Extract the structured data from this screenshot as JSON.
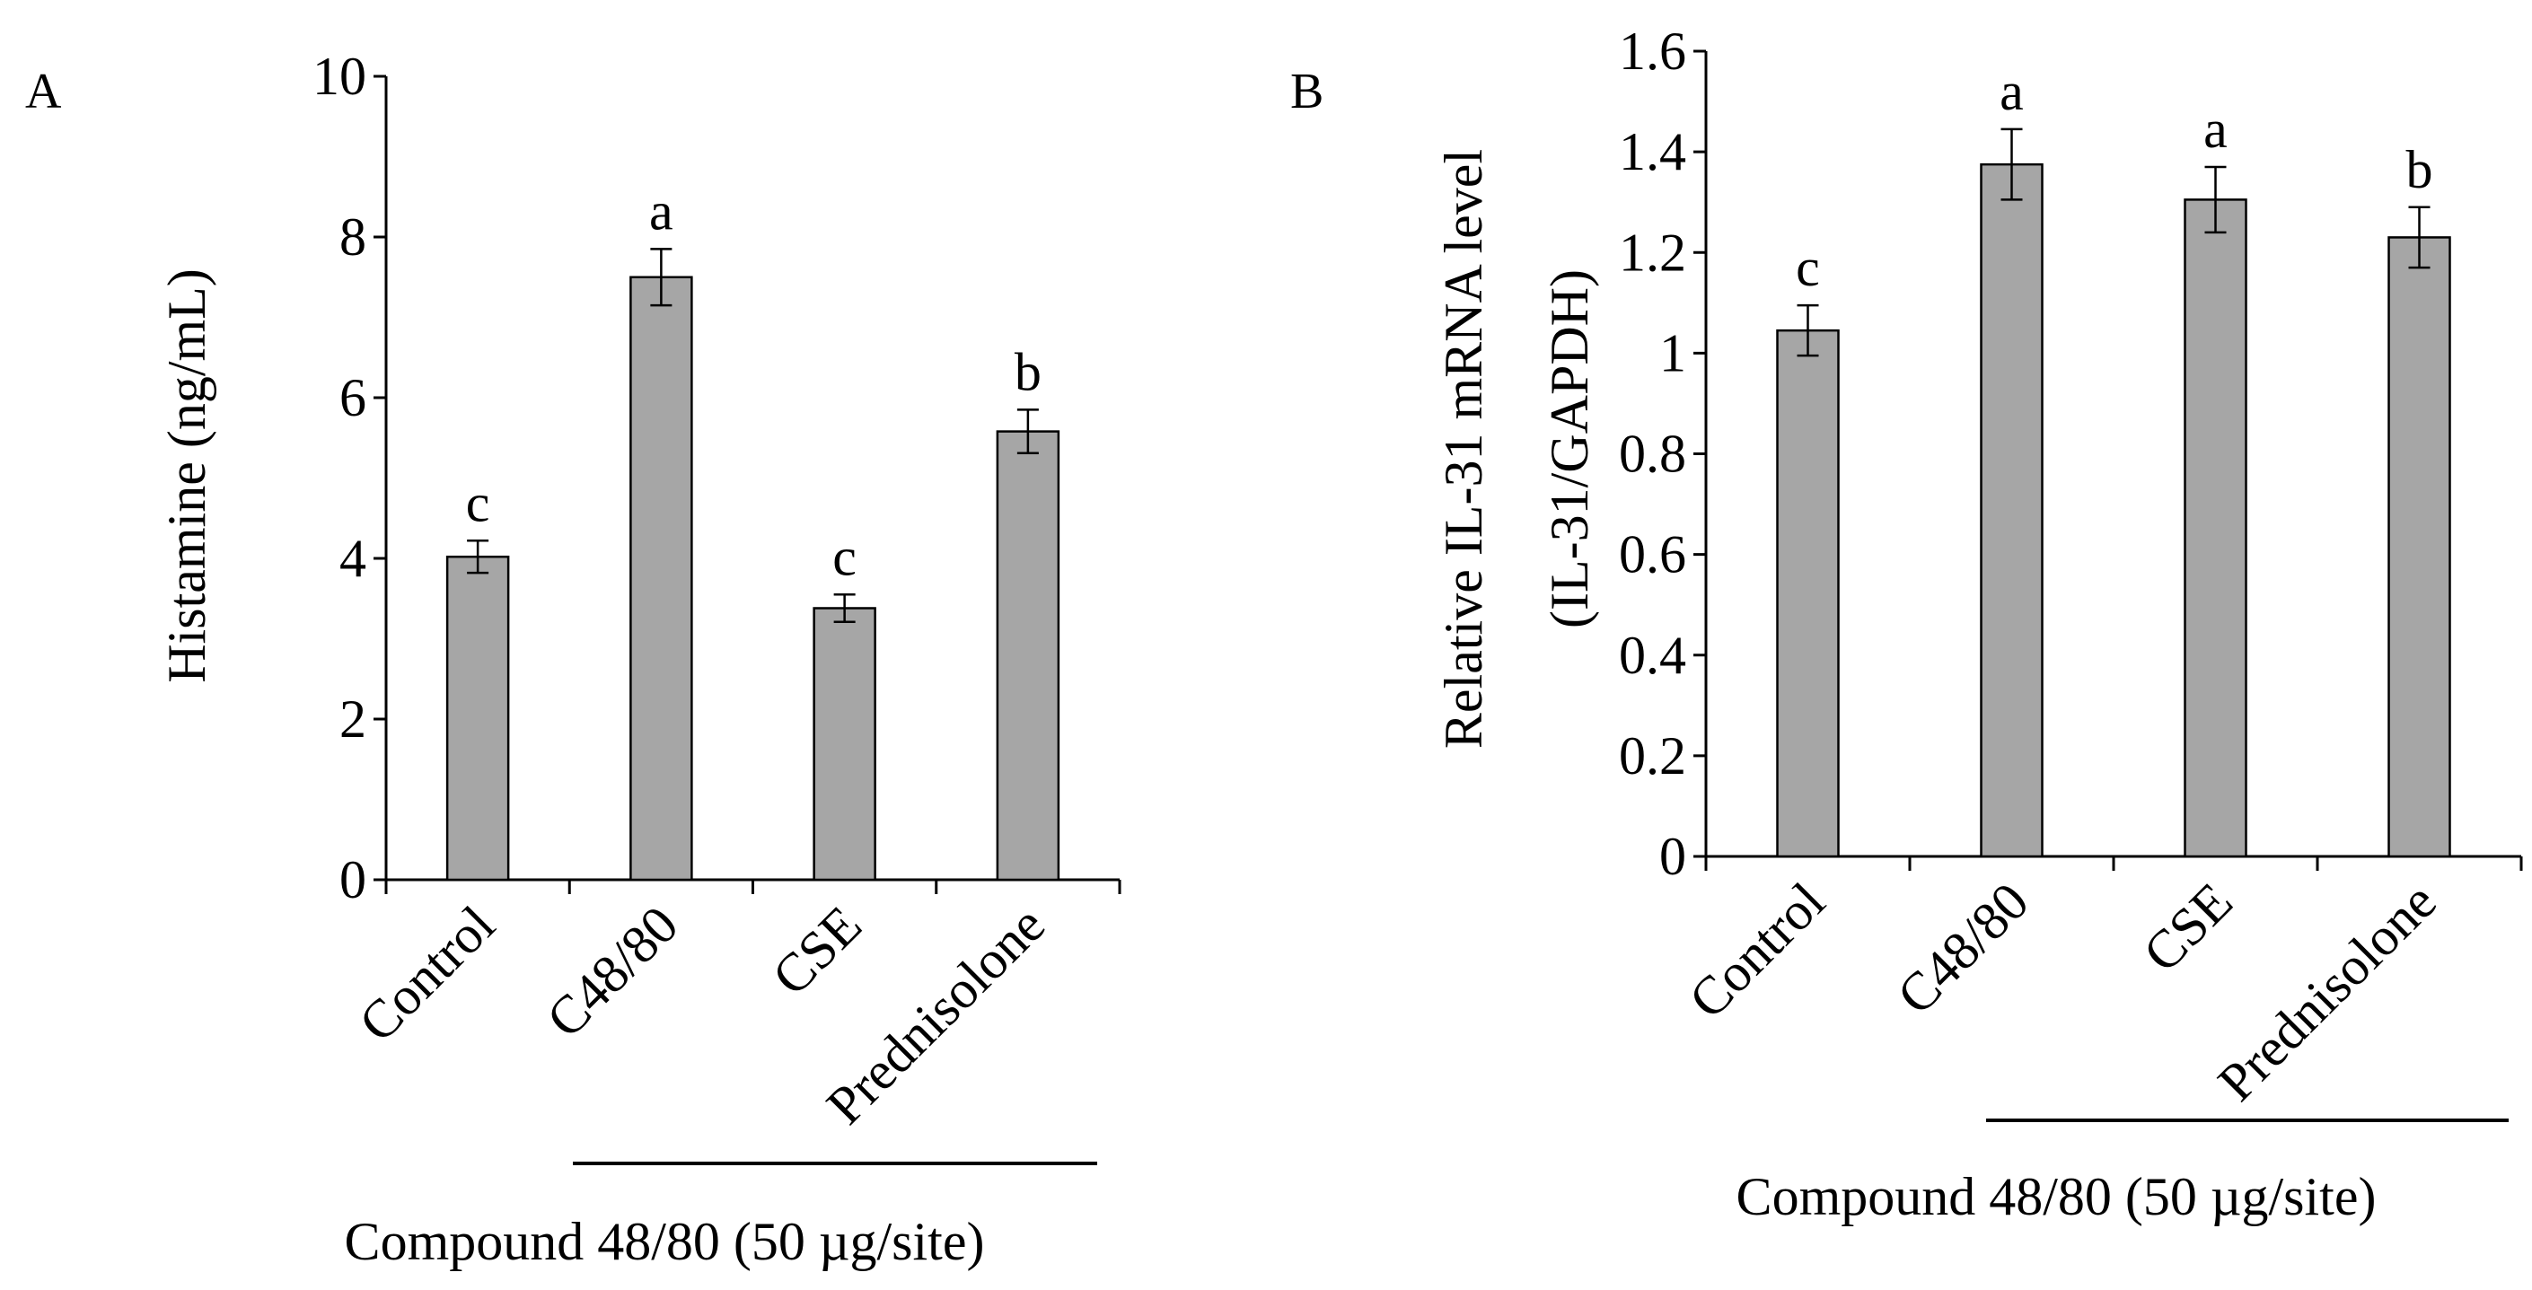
{
  "chart_data": [
    {
      "panel_label": "A",
      "type": "bar",
      "categories": [
        "Control",
        "C48/80",
        "CSE",
        "Prednisolone"
      ],
      "values": [
        4.02,
        7.5,
        3.38,
        5.58
      ],
      "errors": [
        0.2,
        0.35,
        0.17,
        0.27
      ],
      "significance": [
        "c",
        "a",
        "c",
        "b"
      ],
      "ylabel": "Histamine (ng/mL)",
      "ylim": [
        0,
        10
      ],
      "yticks": [
        "0",
        "2",
        "4",
        "6",
        "8",
        "10"
      ],
      "group_label": "Compound 48/80 (50 µg/site)",
      "bar_color": "#a6a6a6"
    },
    {
      "panel_label": "B",
      "type": "bar",
      "categories": [
        "Control",
        "C48/80",
        "CSE",
        "Prednisolone"
      ],
      "values": [
        1.045,
        1.375,
        1.305,
        1.23
      ],
      "errors": [
        0.05,
        0.07,
        0.065,
        0.06
      ],
      "significance": [
        "c",
        "a",
        "a",
        "b"
      ],
      "ylabel_line1": "Relative IL-31 mRNA level",
      "ylabel_line2": "(IL-31/GAPDH)",
      "ylim": [
        0,
        1.6
      ],
      "yticks": [
        "0",
        "0.2",
        "0.4",
        "0.6",
        "0.8",
        "1",
        "1.2",
        "1.4",
        "1.6"
      ],
      "group_label": "Compound 48/80 (50 µg/site)",
      "bar_color": "#a6a6a6"
    }
  ]
}
